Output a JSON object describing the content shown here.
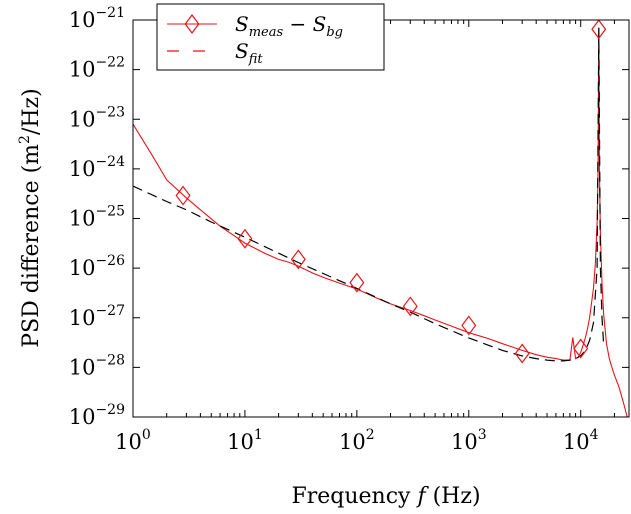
{
  "chart_data": {
    "type": "line",
    "xlabel": "Frequency f (Hz)",
    "ylabel": "PSD difference (m²/Hz)",
    "xscale": "log",
    "yscale": "log",
    "xlim": [
      1,
      27000
    ],
    "ylim": [
      1e-29,
      1e-21
    ],
    "x_ticks": [
      {
        "value": 1,
        "base": "10",
        "exp": "0"
      },
      {
        "value": 10,
        "base": "10",
        "exp": "1"
      },
      {
        "value": 100,
        "base": "10",
        "exp": "2"
      },
      {
        "value": 1000,
        "base": "10",
        "exp": "3"
      },
      {
        "value": 10000,
        "base": "10",
        "exp": "4"
      }
    ],
    "y_ticks": [
      {
        "value": 1e-21,
        "base": "10",
        "exp": "−21"
      },
      {
        "value": 1e-22,
        "base": "10",
        "exp": "−22"
      },
      {
        "value": 1e-23,
        "base": "10",
        "exp": "−23"
      },
      {
        "value": 1e-24,
        "base": "10",
        "exp": "−24"
      },
      {
        "value": 1e-25,
        "base": "10",
        "exp": "−25"
      },
      {
        "value": 1e-26,
        "base": "10",
        "exp": "−26"
      },
      {
        "value": 1e-27,
        "base": "10",
        "exp": "−27"
      },
      {
        "value": 1e-28,
        "base": "10",
        "exp": "−28"
      },
      {
        "value": 1e-29,
        "base": "10",
        "exp": "−29"
      }
    ],
    "grid": false,
    "legend_position": "top-left",
    "series": [
      {
        "name": "S_meas − S_bg",
        "legend": {
          "main": "S",
          "sub": "meas",
          "minus": "−",
          "main2": "S",
          "sub2": "bg"
        },
        "color": "#e8141a",
        "style": "solid",
        "marker": "diamond",
        "x": [
          1,
          1.5,
          2,
          3,
          4,
          6,
          8,
          10,
          15,
          20,
          25,
          30,
          40,
          50,
          70,
          100,
          150,
          200,
          300,
          400,
          500,
          700,
          1000,
          1500,
          2000,
          3000,
          4000,
          5000,
          6000,
          7000,
          8000,
          8500,
          9000,
          9500,
          10000,
          10500,
          11000,
          11500,
          12000,
          13000,
          13500,
          14000,
          14300,
          14500,
          14700,
          15000,
          15500,
          16000,
          17000,
          18000,
          19000,
          20000,
          22000,
          24000,
          26000,
          27000
        ],
        "y": [
          8e-24,
          1.8e-24,
          6e-25,
          2.6e-25,
          1.5e-25,
          7e-26,
          4.5e-26,
          3.2e-26,
          2e-26,
          1.5e-26,
          1.3e-26,
          1.1e-26,
          8e-27,
          6.5e-27,
          5e-27,
          3.8e-27,
          2.5e-27,
          1.9e-27,
          1.4e-27,
          1.1e-27,
          9e-28,
          6.8e-28,
          5e-28,
          3.8e-28,
          3e-28,
          2.2e-28,
          1.8e-28,
          1.6e-28,
          1.5e-28,
          1.4e-28,
          1.4e-28,
          4e-28,
          1.5e-28,
          1.6e-28,
          2e-28,
          2.8e-28,
          4e-28,
          6e-28,
          1e-27,
          4e-27,
          1.2e-26,
          8e-26,
          1e-24,
          7e-22,
          1e-24,
          5e-26,
          5e-27,
          1.2e-27,
          3e-28,
          1.5e-28,
          1e-28,
          7e-29,
          4e-29,
          2e-29,
          1e-29,
          8e-30
        ],
        "marker_x": [
          2.8,
          10,
          30,
          100,
          300,
          1000,
          3000,
          10000,
          14500
        ],
        "marker_y": [
          2.9e-25,
          3.9e-26,
          1.5e-26,
          5.1e-27,
          1.7e-27,
          7e-28,
          1.9e-28,
          2.4e-28,
          6.5e-22
        ]
      },
      {
        "name": "S_fit",
        "legend": {
          "main": "S",
          "sub": "fit"
        },
        "color": "#000000",
        "style": "dashed",
        "x": [
          1,
          2,
          3,
          5,
          10,
          20,
          30,
          50,
          100,
          200,
          300,
          500,
          1000,
          2000,
          3000,
          4000,
          5000,
          6000,
          7000,
          8000,
          9000,
          10000,
          11000,
          12000,
          13000,
          14000,
          14500,
          15000,
          15500,
          16000
        ],
        "y": [
          4.5e-25,
          2.2e-25,
          1.5e-25,
          8.5e-26,
          4.2e-26,
          2e-26,
          1.3e-26,
          7.8e-27,
          3.9e-27,
          1.9e-27,
          1.3e-27,
          7.6e-28,
          3.9e-28,
          2.2e-28,
          1.7e-28,
          1.5e-28,
          1.4e-28,
          1.35e-28,
          1.35e-28,
          1.4e-28,
          1.5e-28,
          1.7e-28,
          2.2e-28,
          3.5e-28,
          8e-28,
          1e-26,
          7e-22,
          1e-26,
          1e-27,
          3e-28
        ]
      }
    ]
  }
}
